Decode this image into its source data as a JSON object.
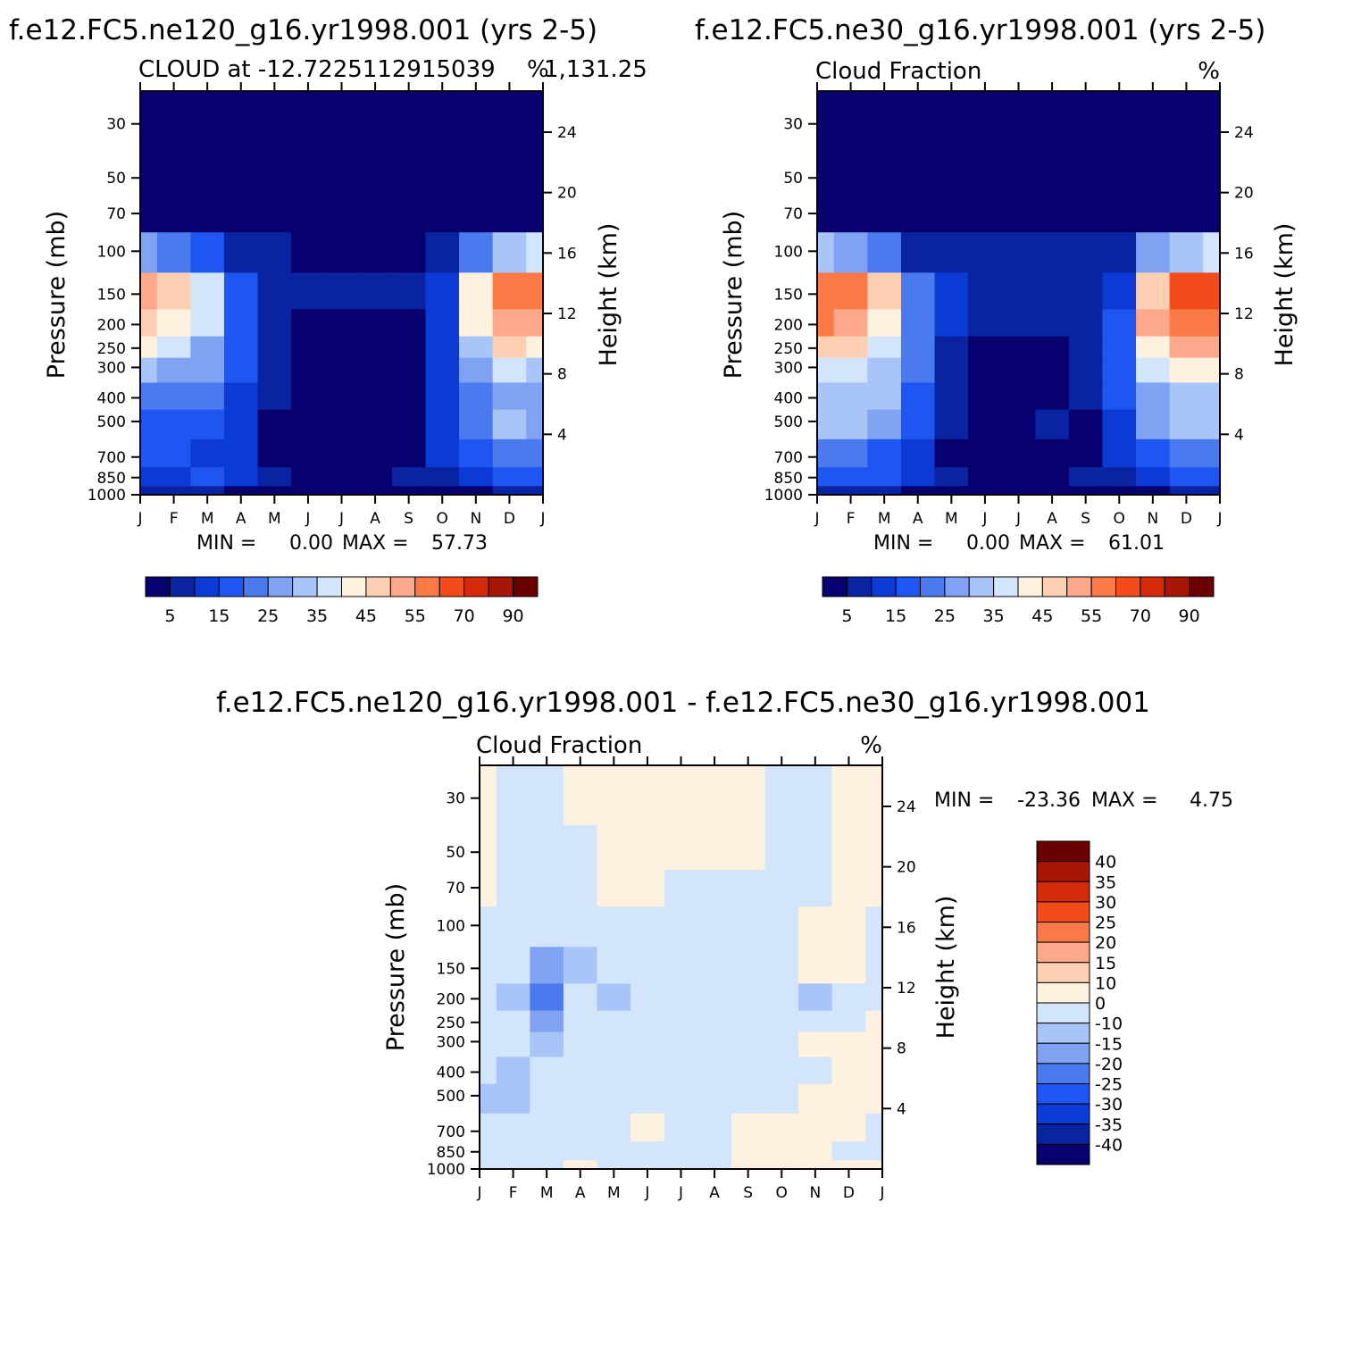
{
  "months": [
    "J",
    "F",
    "M",
    "A",
    "M",
    "J",
    "J",
    "A",
    "S",
    "O",
    "N",
    "D",
    "J"
  ],
  "pressure_ticks": [
    "30",
    "50",
    "70",
    "100",
    "150",
    "200",
    "250",
    "300",
    "400",
    "500",
    "700",
    "850",
    "1000"
  ],
  "height_ticks": [
    "24",
    "20",
    "16",
    "12",
    "8",
    "4"
  ],
  "labels": {
    "pressure_axis": "Pressure (mb)",
    "height_axis": "Height (km)"
  },
  "colors": {
    "scale_seq": [
      "#08006e",
      "#0a23a0",
      "#0b3bd4",
      "#1f55f0",
      "#4a7aee",
      "#7fa2f2",
      "#a9c4f6",
      "#d2e5fa",
      "#fff1e0",
      "#fdcfb2",
      "#fca88a",
      "#fb7a48",
      "#f44b1b",
      "#d42b0b",
      "#a81606",
      "#6b0000"
    ],
    "scale_diff": [
      "#08006e",
      "#0a23a0",
      "#0b3bd4",
      "#1f55f0",
      "#4a7aee",
      "#7fa2f2",
      "#a9c4f6",
      "#d2e5fa",
      "#fff1e0",
      "#fdcfb2",
      "#fca88a",
      "#fb7a48",
      "#f44b1b",
      "#d42b0b",
      "#a81606",
      "#6b0000"
    ]
  },
  "chart_data": [
    {
      "type": "heatmap",
      "id": "ne120",
      "title": "f.e12.FC5.ne120_g16.yr1998.001 (yrs 2-5)",
      "subtitle_left": "CLOUD at -12.7225112915039",
      "subtitle_overlap": "%",
      "subtitle_right": "1,131.25",
      "xlabel": "",
      "ylabel": "Pressure (mb)",
      "y2label": "Height (km)",
      "stats_min_label": "MIN =",
      "stats_min": "0.00",
      "stats_max_label": "MAX =",
      "stats_max": "57.73",
      "colorbar_ticks": [
        "5",
        "15",
        "25",
        "35",
        "45",
        "55",
        "70",
        "90"
      ],
      "levels": [
        0,
        5,
        10,
        15,
        20,
        25,
        30,
        35,
        40,
        45,
        50,
        55,
        60,
        70,
        80,
        90
      ],
      "pressure_levels": [
        30,
        50,
        70,
        100,
        150,
        200,
        250,
        300,
        400,
        500,
        700,
        850,
        1000
      ],
      "grid": [
        [
          0,
          0,
          0,
          0,
          0,
          0,
          0,
          0,
          0,
          0,
          0,
          0,
          0
        ],
        [
          0,
          0,
          0,
          0,
          0,
          0,
          0,
          0,
          0,
          0,
          0,
          0,
          0
        ],
        [
          3,
          2,
          2,
          1,
          1,
          1,
          1,
          1,
          1,
          1,
          2,
          3,
          3
        ],
        [
          25,
          22,
          17,
          6,
          5,
          4,
          4,
          4,
          4,
          6,
          20,
          32,
          36
        ],
        [
          52,
          47,
          38,
          17,
          7,
          5,
          5,
          5,
          6,
          10,
          40,
          57,
          56
        ],
        [
          48,
          44,
          35,
          19,
          6,
          3,
          2,
          2,
          4,
          13,
          42,
          52,
          50
        ],
        [
          40,
          36,
          29,
          17,
          5,
          2,
          1,
          1,
          3,
          14,
          32,
          46,
          44
        ],
        [
          31,
          29,
          25,
          16,
          5,
          2,
          1,
          1,
          3,
          14,
          27,
          35,
          34
        ],
        [
          22,
          22,
          21,
          14,
          5,
          2,
          1,
          1,
          3,
          13,
          23,
          27,
          26
        ],
        [
          19,
          19,
          18,
          13,
          4,
          2,
          1,
          1,
          3,
          12,
          22,
          31,
          26
        ],
        [
          17,
          16,
          14,
          11,
          4,
          2,
          1,
          1,
          4,
          11,
          17,
          22,
          20
        ],
        [
          13,
          14,
          15,
          10,
          6,
          4,
          2,
          3,
          6,
          9,
          13,
          15,
          15
        ],
        [
          5,
          5,
          5,
          4,
          3,
          2,
          2,
          2,
          3,
          4,
          4,
          5,
          5
        ]
      ]
    },
    {
      "type": "heatmap",
      "id": "ne30",
      "title": "f.e12.FC5.ne30_g16.yr1998.001 (yrs 2-5)",
      "subtitle_left": "Cloud Fraction",
      "subtitle_right": "%",
      "xlabel": "",
      "ylabel": "Pressure (mb)",
      "y2label": "Height (km)",
      "stats_min_label": "MIN =",
      "stats_min": "0.00",
      "stats_max_label": "MAX =",
      "stats_max": "61.01",
      "colorbar_ticks": [
        "5",
        "15",
        "25",
        "35",
        "45",
        "55",
        "70",
        "90"
      ],
      "levels": [
        0,
        5,
        10,
        15,
        20,
        25,
        30,
        35,
        40,
        45,
        50,
        55,
        60,
        70,
        80,
        90
      ],
      "pressure_levels": [
        30,
        50,
        70,
        100,
        150,
        200,
        250,
        300,
        400,
        500,
        700,
        850,
        1000
      ],
      "grid": [
        [
          0,
          0,
          0,
          0,
          0,
          0,
          0,
          0,
          0,
          0,
          0,
          0,
          0
        ],
        [
          0,
          0,
          0,
          0,
          0,
          0,
          0,
          0,
          0,
          0,
          0,
          0,
          0
        ],
        [
          3,
          2,
          2,
          1,
          1,
          1,
          1,
          1,
          1,
          1,
          2,
          3,
          3
        ],
        [
          30,
          27,
          20,
          8,
          6,
          5,
          5,
          5,
          6,
          8,
          25,
          34,
          36
        ],
        [
          59,
          56,
          45,
          22,
          10,
          8,
          8,
          7,
          9,
          14,
          46,
          60,
          61
        ],
        [
          56,
          54,
          44,
          24,
          10,
          6,
          6,
          5,
          7,
          16,
          52,
          58,
          58
        ],
        [
          48,
          46,
          38,
          22,
          9,
          4,
          4,
          3,
          6,
          17,
          44,
          50,
          50
        ],
        [
          38,
          36,
          32,
          20,
          8,
          3,
          2,
          2,
          5,
          17,
          36,
          40,
          40
        ],
        [
          30,
          31,
          30,
          18,
          7,
          3,
          2,
          2,
          5,
          15,
          29,
          30,
          30
        ],
        [
          31,
          33,
          28,
          16,
          6,
          3,
          3,
          6,
          4,
          14,
          27,
          30,
          31
        ],
        [
          22,
          22,
          18,
          12,
          4,
          2,
          2,
          2,
          4,
          12,
          19,
          22,
          22
        ],
        [
          15,
          16,
          16,
          10,
          5,
          3,
          2,
          3,
          5,
          9,
          13,
          15,
          15
        ],
        [
          5,
          5,
          5,
          4,
          3,
          2,
          2,
          2,
          3,
          4,
          4,
          5,
          5
        ]
      ]
    },
    {
      "type": "heatmap",
      "id": "diff",
      "title": "f.e12.FC5.ne120_g16.yr1998.001 - f.e12.FC5.ne30_g16.yr1998.001",
      "subtitle_left": "Cloud Fraction",
      "subtitle_right": "%",
      "xlabel": "",
      "ylabel": "Pressure (mb)",
      "y2label": "Height (km)",
      "stats_min_label": "MIN =",
      "stats_min": "-23.36",
      "stats_max_label": "MAX =",
      "stats_max": "4.75",
      "colorbar_ticks": [
        "40",
        "35",
        "30",
        "25",
        "20",
        "15",
        "10",
        "0",
        "-10",
        "-15",
        "-20",
        "-25",
        "-30",
        "-35",
        "-40"
      ],
      "levels": [
        -45,
        -40,
        -35,
        -30,
        -25,
        -20,
        -15,
        -10,
        0,
        10,
        15,
        20,
        25,
        30,
        35,
        40
      ],
      "pressure_levels": [
        30,
        50,
        70,
        100,
        150,
        200,
        250,
        300,
        400,
        500,
        700,
        850,
        1000
      ],
      "grid": [
        [
          1,
          -1,
          -1,
          1,
          1,
          1,
          1,
          1,
          1,
          -1,
          -1,
          1,
          1
        ],
        [
          1,
          -1,
          -1,
          -1,
          1,
          1,
          1,
          1,
          1,
          -1,
          -1,
          1,
          1
        ],
        [
          1,
          -1,
          -1,
          -1,
          1,
          1,
          -1,
          -1,
          -1,
          -1,
          -1,
          1,
          1
        ],
        [
          -1,
          -1,
          -3,
          -2,
          -1,
          -1,
          -1,
          -1,
          -1,
          -1,
          1,
          1,
          -1
        ],
        [
          -2,
          -10,
          -17,
          -12,
          -5,
          -1,
          -1,
          -1,
          -1,
          -1,
          2,
          1,
          -1
        ],
        [
          -8,
          -13,
          -22,
          -8,
          -11,
          -1,
          -1,
          -1,
          -1,
          -1,
          -12,
          -1,
          -1
        ],
        [
          -8,
          -10,
          -16,
          -8,
          -7,
          -1,
          -1,
          -1,
          -1,
          -1,
          -10,
          -1,
          1
        ],
        [
          -7,
          -10,
          -12,
          -6,
          -3,
          -1,
          -1,
          -1,
          -1,
          -1,
          1,
          1,
          1
        ],
        [
          -10,
          -11,
          -10,
          -5,
          -1,
          -1,
          -1,
          -1,
          -1,
          -1,
          -1,
          1,
          1
        ],
        [
          -12,
          -13,
          -10,
          -5,
          -1,
          -1,
          -1,
          -1,
          -1,
          -1,
          1,
          1,
          1
        ],
        [
          -1,
          -1,
          -1,
          -1,
          -1,
          1,
          -1,
          -1,
          1,
          1,
          1,
          1,
          -1
        ],
        [
          -1,
          -1,
          -1,
          -1,
          -1,
          -1,
          -1,
          -1,
          1,
          1,
          1,
          -1,
          -1
        ],
        [
          -1,
          -1,
          -1,
          1,
          -1,
          -1,
          -1,
          -1,
          1,
          1,
          1,
          1,
          1
        ]
      ]
    }
  ]
}
